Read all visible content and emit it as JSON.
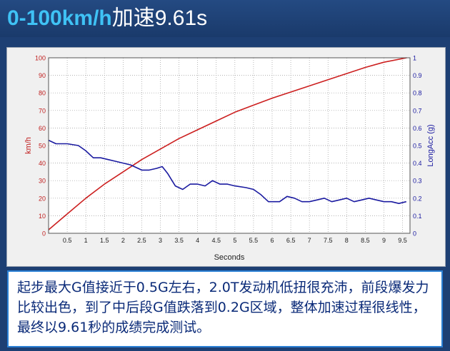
{
  "header": {
    "accent": "0-100km/h",
    "rest": "加速9.61s"
  },
  "caption": "起步最大G值接近于0.5G左右，2.0T发动机低扭很充沛，前段爆发力比较出色，到了中后段G值跌落到0.2G区域，整体加速过程很线性，最终以9.61秒的成绩完成测试。",
  "chart_data": {
    "type": "line",
    "title": "",
    "xlabel": "Seconds",
    "ylabel": "km/h",
    "y2label": "LongAcc (g)",
    "xlim": [
      0,
      9.7
    ],
    "ylim": [
      0,
      100
    ],
    "y2lim": [
      0,
      1
    ],
    "grid": true,
    "x_ticks": [
      "0.5",
      "1",
      "1.5",
      "2",
      "2.5",
      "3",
      "3.5",
      "4",
      "4.5",
      "5",
      "5.5",
      "6",
      "6.5",
      "7",
      "7.5",
      "8",
      "8.5",
      "9",
      "9.5"
    ],
    "y_ticks": [
      "0",
      "10",
      "20",
      "30",
      "40",
      "50",
      "60",
      "70",
      "80",
      "90",
      "100"
    ],
    "y2_ticks": [
      "0",
      "0.1",
      "0.2",
      "0.3",
      "0.4",
      "0.5",
      "0.6",
      "0.7",
      "0.8",
      "0.9",
      "1"
    ],
    "colors": {
      "speed": "#cc1f1f",
      "acc": "#1a1aa0",
      "grid": "#9a9a9a",
      "axis": "#333333",
      "ytick": "#c02020",
      "y2tick": "#1a1aa0"
    },
    "series": [
      {
        "axis": "left",
        "x": [
          0,
          0.5,
          1,
          1.5,
          2,
          2.5,
          3,
          3.5,
          4,
          4.5,
          5,
          5.5,
          6,
          6.5,
          7,
          7.5,
          8,
          8.5,
          9,
          9.61
        ],
        "values": [
          2,
          11,
          20,
          28,
          35,
          42,
          48,
          54,
          59,
          64,
          69,
          73,
          77,
          80.5,
          84,
          87.5,
          91,
          94.5,
          97.5,
          100
        ]
      },
      {
        "axis": "right",
        "x": [
          0,
          0.2,
          0.5,
          0.8,
          1.0,
          1.2,
          1.4,
          1.6,
          1.8,
          2.0,
          2.2,
          2.5,
          2.7,
          2.9,
          3.05,
          3.2,
          3.4,
          3.6,
          3.8,
          4.0,
          4.2,
          4.4,
          4.6,
          4.8,
          5.0,
          5.3,
          5.5,
          5.7,
          5.9,
          6.0,
          6.2,
          6.4,
          6.6,
          6.8,
          7.0,
          7.2,
          7.4,
          7.6,
          7.8,
          8.0,
          8.2,
          8.4,
          8.6,
          8.8,
          9.0,
          9.2,
          9.4,
          9.6
        ],
        "values": [
          0.53,
          0.51,
          0.51,
          0.5,
          0.47,
          0.43,
          0.43,
          0.42,
          0.41,
          0.4,
          0.39,
          0.36,
          0.36,
          0.37,
          0.38,
          0.34,
          0.27,
          0.25,
          0.28,
          0.28,
          0.27,
          0.3,
          0.28,
          0.28,
          0.27,
          0.26,
          0.25,
          0.22,
          0.18,
          0.18,
          0.18,
          0.21,
          0.2,
          0.18,
          0.18,
          0.19,
          0.2,
          0.18,
          0.19,
          0.2,
          0.18,
          0.19,
          0.2,
          0.19,
          0.18,
          0.18,
          0.17,
          0.18
        ]
      }
    ]
  }
}
